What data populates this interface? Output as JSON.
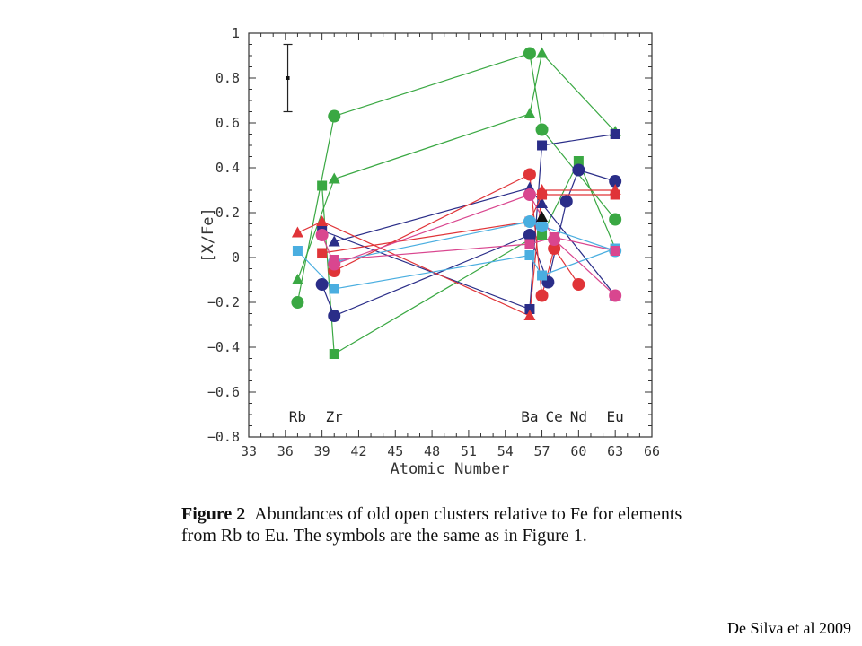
{
  "caption": {
    "label": "Figure 2",
    "text": "Abundances of old open clusters relative to Fe for elements from Rb to Eu. The symbols are the same as in Figure 1."
  },
  "credit": "De Silva et al 2009",
  "chart_data": {
    "type": "scatter",
    "title": "",
    "xlabel": "Atomic Number",
    "ylabel": "[X/Fe]",
    "xlim": [
      33,
      66
    ],
    "ylim": [
      -0.8,
      1.0
    ],
    "xticks": [
      33,
      36,
      39,
      42,
      45,
      48,
      51,
      54,
      57,
      60,
      63,
      66
    ],
    "yticks": [
      -0.8,
      -0.6,
      -0.4,
      -0.2,
      0,
      0.2,
      0.4,
      0.6,
      0.8,
      1
    ],
    "ytick_labels": [
      "−0.8",
      "−0.6",
      "−0.4",
      "−0.2",
      "0",
      "0.2",
      "0.4",
      "0.6",
      "0.8",
      "1"
    ],
    "element_labels": [
      {
        "text": "Rb",
        "x": 37
      },
      {
        "text": "Zr",
        "x": 40
      },
      {
        "text": "Ba",
        "x": 56
      },
      {
        "text": "Ce",
        "x": 58
      },
      {
        "text": "Nd",
        "x": 60
      },
      {
        "text": "Eu",
        "x": 63
      }
    ],
    "error_bar": {
      "x": 36.2,
      "y": 0.8,
      "low": 0.65,
      "high": 0.95
    },
    "colors": {
      "green": "#3aa843",
      "navy": "#2a2d88",
      "red": "#e03438",
      "lightblue": "#4aaee0",
      "pink": "#d9468f",
      "black": "#111111"
    },
    "series": [
      {
        "color": "green",
        "marker": "circle",
        "points": [
          [
            37,
            -0.2
          ],
          [
            40,
            0.63
          ],
          [
            56,
            0.91
          ],
          [
            57,
            0.57
          ],
          [
            63,
            0.17
          ]
        ]
      },
      {
        "color": "green",
        "marker": "triangle",
        "points": [
          [
            37,
            -0.1
          ],
          [
            40,
            0.35
          ],
          [
            56,
            0.64
          ],
          [
            57,
            0.91
          ],
          [
            63,
            0.56
          ]
        ]
      },
      {
        "color": "green",
        "marker": "square",
        "points": [
          [
            39,
            0.32
          ],
          [
            40,
            -0.43
          ],
          [
            56,
            0.08
          ],
          [
            57,
            0.1
          ],
          [
            60,
            0.43
          ],
          [
            63,
            0.04
          ]
        ]
      },
      {
        "color": "navy",
        "marker": "circle",
        "points": [
          [
            39,
            -0.12
          ],
          [
            40,
            -0.26
          ],
          [
            56,
            0.1
          ],
          [
            57.5,
            -0.11
          ],
          [
            59,
            0.25
          ],
          [
            60,
            0.39
          ],
          [
            63,
            0.34
          ]
        ]
      },
      {
        "color": "navy",
        "marker": "triangle",
        "points": [
          [
            40,
            0.07
          ],
          [
            56,
            0.31
          ],
          [
            57,
            0.24
          ],
          [
            63,
            -0.17
          ]
        ]
      },
      {
        "color": "navy",
        "marker": "square",
        "points": [
          [
            39,
            0.12
          ],
          [
            56,
            -0.23
          ],
          [
            57,
            0.5
          ],
          [
            63,
            0.55
          ]
        ]
      },
      {
        "color": "red",
        "marker": "triangle",
        "points": [
          [
            37,
            0.11
          ],
          [
            39,
            0.16
          ],
          [
            56,
            -0.26
          ],
          [
            57,
            0.3
          ],
          [
            63,
            0.3
          ]
        ]
      },
      {
        "color": "red",
        "marker": "square",
        "points": [
          [
            39,
            0.02
          ],
          [
            56,
            0.16
          ],
          [
            57,
            0.28
          ],
          [
            63,
            0.28
          ]
        ]
      },
      {
        "color": "red",
        "marker": "circle",
        "points": [
          [
            40,
            -0.06
          ],
          [
            56,
            0.37
          ],
          [
            57,
            -0.17
          ],
          [
            58,
            0.04
          ],
          [
            60,
            -0.12
          ]
        ]
      },
      {
        "color": "lightblue",
        "marker": "square",
        "points": [
          [
            37,
            0.03
          ],
          [
            40,
            -0.14
          ],
          [
            56,
            0.01
          ],
          [
            57,
            -0.08
          ],
          [
            63,
            0.04
          ]
        ]
      },
      {
        "color": "lightblue",
        "marker": "circle",
        "points": [
          [
            40,
            -0.02
          ],
          [
            56,
            0.16
          ],
          [
            57,
            0.14
          ],
          [
            63,
            0.03
          ]
        ]
      },
      {
        "color": "pink",
        "marker": "square",
        "points": [
          [
            40,
            -0.01
          ],
          [
            56,
            0.06
          ],
          [
            58,
            0.09
          ],
          [
            63,
            0.03
          ]
        ]
      },
      {
        "color": "pink",
        "marker": "circle",
        "points": [
          [
            39,
            0.1
          ],
          [
            40,
            -0.03
          ],
          [
            56,
            0.28
          ],
          [
            58,
            0.08
          ],
          [
            63,
            -0.17
          ]
        ]
      },
      {
        "color": "black",
        "marker": "triangle",
        "points": [
          [
            57,
            0.18
          ]
        ]
      }
    ]
  }
}
